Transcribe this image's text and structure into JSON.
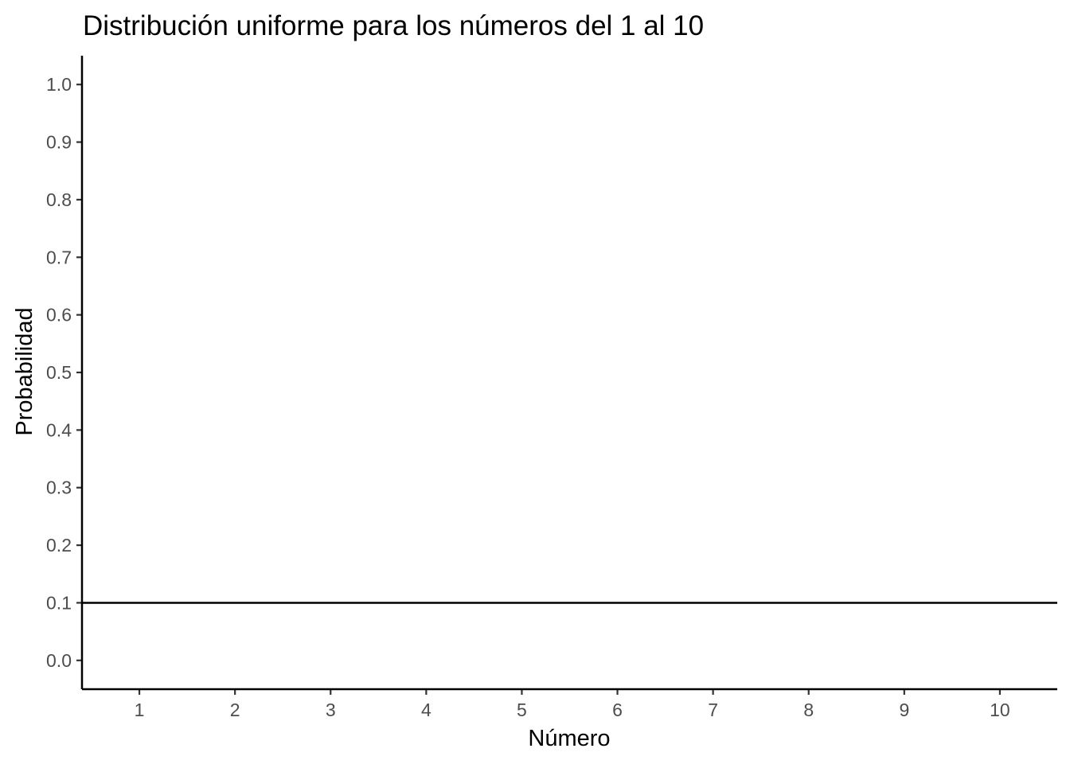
{
  "chart_data": {
    "type": "line",
    "title": "Distribución uniforme para los números del 1 al 10",
    "xlabel": "Número",
    "ylabel": "Probabilidad",
    "x_ticks": [
      1,
      2,
      3,
      4,
      5,
      6,
      7,
      8,
      9,
      10
    ],
    "y_ticks": [
      "0.0",
      "0.1",
      "0.2",
      "0.3",
      "0.4",
      "0.5",
      "0.6",
      "0.7",
      "0.8",
      "0.9",
      "1.0"
    ],
    "xlim": [
      0.4,
      10.6
    ],
    "ylim": [
      -0.05,
      1.05
    ],
    "grid": false,
    "hline": {
      "y": 0.1,
      "color": "#000000"
    }
  }
}
